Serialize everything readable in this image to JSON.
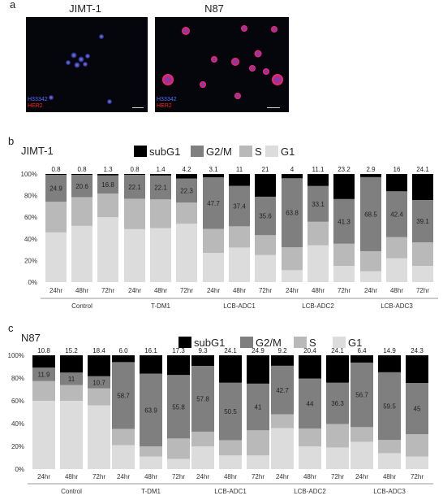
{
  "panel_a": {
    "letter": "a",
    "images": [
      {
        "title": "JIMT-1",
        "stain_blue": "H33342",
        "stain_red": "HER2"
      },
      {
        "title": "N87",
        "stain_blue": "H33342",
        "stain_red": "HER2"
      }
    ]
  },
  "colors": {
    "subG1": "#000000",
    "G2M": "#7f7f7f",
    "S": "#b9b9b9",
    "G1": "#dcdcdc"
  },
  "chart_data": [
    {
      "panel": "b",
      "title": "JIMT-1",
      "type": "bar",
      "stacked": true,
      "legend": [
        "subG1",
        "G2/M",
        "S",
        "G1"
      ],
      "y_ticks": [
        "0%",
        "20%",
        "40%",
        "60%",
        "80%",
        "100%"
      ],
      "ylim": [
        0,
        100
      ],
      "groups": [
        "Control",
        "T-DM1",
        "LCB-ADC1",
        "LCB-ADC2",
        "LCB-ADC3"
      ],
      "categories": [
        "24hr",
        "48hr",
        "72hr"
      ],
      "bars": [
        {
          "subG1": 0.8,
          "G2M": 24.9,
          "S": 28.3,
          "G1": 46.0,
          "top_label": "0.8",
          "mid_label": "24.9"
        },
        {
          "subG1": 0.8,
          "G2M": 20.6,
          "S": 26.6,
          "G1": 52.0,
          "top_label": "0.8",
          "mid_label": "20.6"
        },
        {
          "subG1": 1.3,
          "G2M": 16.8,
          "S": 21.9,
          "G1": 60.0,
          "top_label": "1.3",
          "mid_label": "16.8"
        },
        {
          "subG1": 0.8,
          "G2M": 22.1,
          "S": 28.1,
          "G1": 49.0,
          "top_label": "0.8",
          "mid_label": "22.1"
        },
        {
          "subG1": 1.4,
          "G2M": 22.1,
          "S": 26.5,
          "G1": 50.0,
          "top_label": "1.4",
          "mid_label": "22.1"
        },
        {
          "subG1": 4.2,
          "G2M": 22.3,
          "S": 19.5,
          "G1": 54.0,
          "top_label": "4.2",
          "mid_label": "22.3"
        },
        {
          "subG1": 3.1,
          "G2M": 47.7,
          "S": 22.2,
          "G1": 27.0,
          "top_label": "3.1",
          "mid_label": "47.7"
        },
        {
          "subG1": 11,
          "G2M": 37.4,
          "S": 19.6,
          "G1": 32.0,
          "top_label": "11",
          "mid_label": "37.4"
        },
        {
          "subG1": 21,
          "G2M": 35.6,
          "S": 18.4,
          "G1": 25.0,
          "top_label": "21",
          "mid_label": "35.6"
        },
        {
          "subG1": 4,
          "G2M": 63.8,
          "S": 21.2,
          "G1": 11.0,
          "top_label": "4",
          "mid_label": "63.8"
        },
        {
          "subG1": 11.1,
          "G2M": 33.1,
          "S": 21.8,
          "G1": 34.0,
          "top_label": "11.1",
          "mid_label": "33.1"
        },
        {
          "subG1": 23.2,
          "G2M": 41.3,
          "S": 20.5,
          "G1": 15.0,
          "top_label": "23.2",
          "mid_label": "41.3"
        },
        {
          "subG1": 2.9,
          "G2M": 68.5,
          "S": 18.6,
          "G1": 10.0,
          "top_label": "2.9",
          "mid_label": "68.5"
        },
        {
          "subG1": 16,
          "G2M": 42.4,
          "S": 19.6,
          "G1": 22.0,
          "top_label": "16",
          "mid_label": "42.4"
        },
        {
          "subG1": 24.1,
          "G2M": 39.1,
          "S": 21.8,
          "G1": 15.0,
          "top_label": "24.1",
          "mid_label": "39.1"
        }
      ]
    },
    {
      "panel": "c",
      "title": "N87",
      "type": "bar",
      "stacked": true,
      "legend": [
        "subG1",
        "G2/M",
        "S",
        "G1"
      ],
      "y_ticks": [
        "0%",
        "20%",
        "40%",
        "60%",
        "80%",
        "100%"
      ],
      "ylim": [
        0,
        100
      ],
      "groups": [
        "Control",
        "T-DM1",
        "LCB-ADC1",
        "LCB-ADC2",
        "LCB-ADC3"
      ],
      "categories": [
        "24hr",
        "48hr",
        "72hr"
      ],
      "bars": [
        {
          "subG1": 10.8,
          "G2M": 11.9,
          "S": 17.3,
          "G1": 60.0,
          "top_label": "10.8",
          "mid_label": "11.9"
        },
        {
          "subG1": 15.2,
          "G2M": 11,
          "S": 13.8,
          "G1": 60.0,
          "top_label": "15.2",
          "mid_label": "11"
        },
        {
          "subG1": 18.4,
          "G2M": 10.7,
          "S": 14.9,
          "G1": 56.0,
          "top_label": "18.4",
          "mid_label": "10.7"
        },
        {
          "subG1": 6.0,
          "G2M": 58.7,
          "S": 14.3,
          "G1": 21.0,
          "top_label": "6.0",
          "mid_label": "58.7"
        },
        {
          "subG1": 16.1,
          "G2M": 63.9,
          "S": 9.0,
          "G1": 11.0,
          "top_label": "16.1",
          "mid_label": "63.9"
        },
        {
          "subG1": 17.3,
          "G2M": 55.8,
          "S": 17.9,
          "G1": 9.0,
          "top_label": "17.3",
          "mid_label": "55.8"
        },
        {
          "subG1": 9.3,
          "G2M": 57.8,
          "S": 12.9,
          "G1": 20.0,
          "top_label": "9.3",
          "mid_label": "57.8"
        },
        {
          "subG1": 24.1,
          "G2M": 50.5,
          "S": 13.4,
          "G1": 12.0,
          "top_label": "24.1",
          "mid_label": "50.5"
        },
        {
          "subG1": 24.9,
          "G2M": 41,
          "S": 22.1,
          "G1": 12.0,
          "top_label": "24.9",
          "mid_label": "41"
        },
        {
          "subG1": 9.2,
          "G2M": 42.7,
          "S": 12.1,
          "G1": 36.0,
          "top_label": "9.2",
          "mid_label": "42.7"
        },
        {
          "subG1": 20.4,
          "G2M": 44,
          "S": 15.6,
          "G1": 20.0,
          "top_label": "20.4",
          "mid_label": "44"
        },
        {
          "subG1": 24.1,
          "G2M": 36.3,
          "S": 20.6,
          "G1": 19.0,
          "top_label": "24.1",
          "mid_label": "36.3"
        },
        {
          "subG1": 6.4,
          "G2M": 56.7,
          "S": 12.9,
          "G1": 24.0,
          "top_label": "6.4",
          "mid_label": "56.7"
        },
        {
          "subG1": 14.9,
          "G2M": 59.5,
          "S": 11.6,
          "G1": 14.0,
          "top_label": "14.9",
          "mid_label": "59.5"
        },
        {
          "subG1": 24.3,
          "G2M": 45,
          "S": 19.7,
          "G1": 11.0,
          "top_label": "24.3",
          "mid_label": "45"
        }
      ]
    }
  ]
}
